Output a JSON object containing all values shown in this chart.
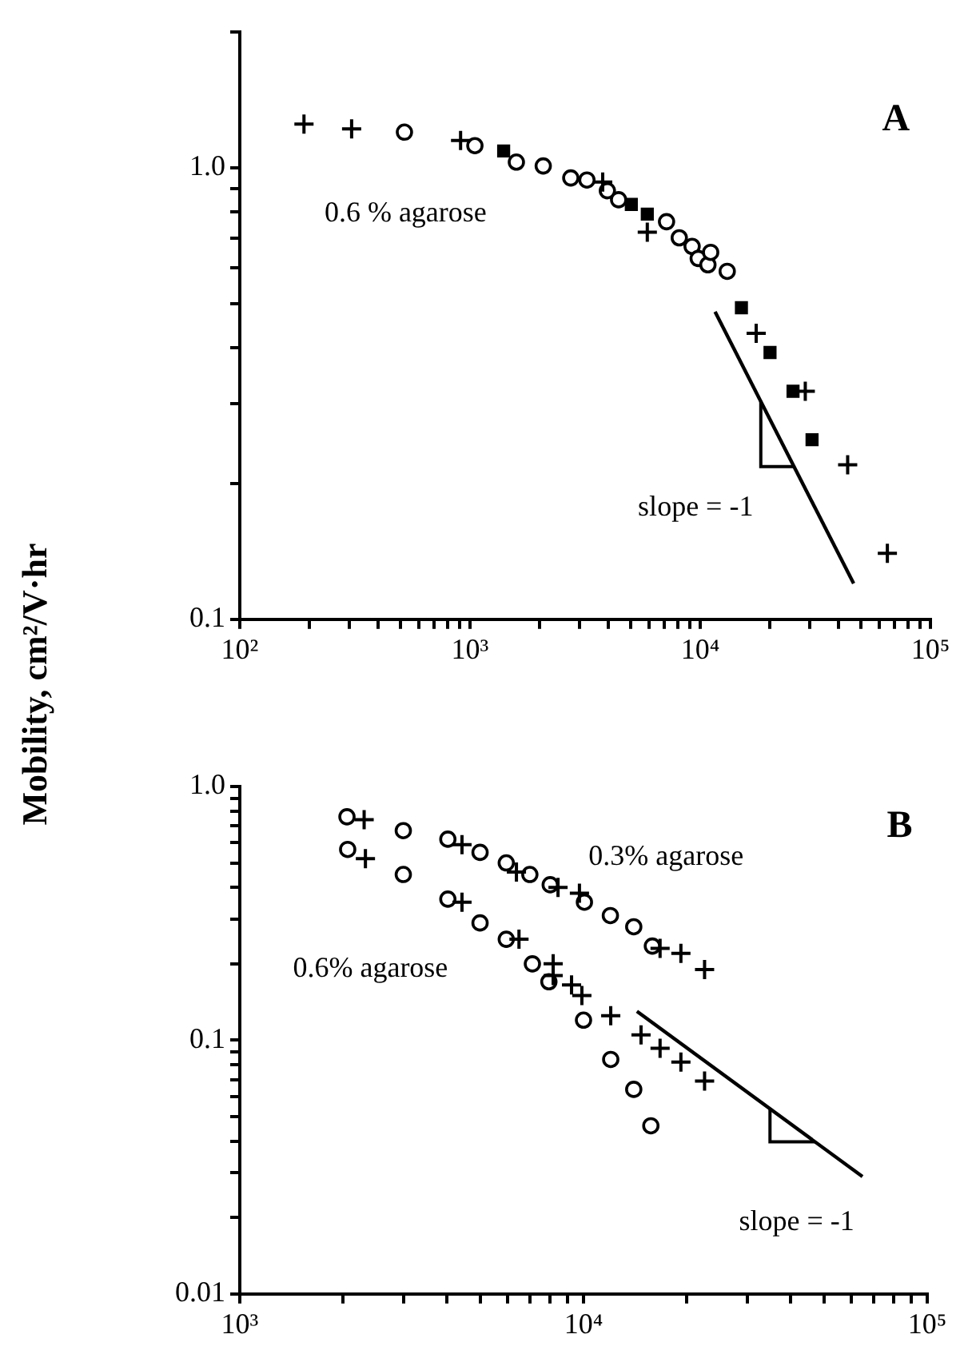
{
  "chart_data": [
    {
      "type": "scatter",
      "ylabel": "Mobility, cm²/V·hr",
      "annotations": [
        "A",
        "0.6 % agarose",
        "slope = -1"
      ],
      "log": "xy",
      "xlim": [
        100,
        100000
      ],
      "ylim": [
        0.1,
        2
      ],
      "xticks": [
        {
          "value": 100,
          "label": "10²"
        },
        {
          "value": 200,
          "label": null
        },
        {
          "value": 300,
          "label": null
        },
        {
          "value": 400,
          "label": null
        },
        {
          "value": 500,
          "label": null
        },
        {
          "value": 600,
          "label": null
        },
        {
          "value": 700,
          "label": null
        },
        {
          "value": 800,
          "label": null
        },
        {
          "value": 900,
          "label": null
        },
        {
          "value": 1000,
          "label": "10³"
        },
        {
          "value": 2000,
          "label": null
        },
        {
          "value": 3000,
          "label": null
        },
        {
          "value": 4000,
          "label": null
        },
        {
          "value": 5000,
          "label": null
        },
        {
          "value": 6000,
          "label": null
        },
        {
          "value": 7000,
          "label": null
        },
        {
          "value": 8000,
          "label": null
        },
        {
          "value": 9000,
          "label": null
        },
        {
          "value": 10000,
          "label": "10⁴"
        },
        {
          "value": 20000,
          "label": null
        },
        {
          "value": 30000,
          "label": null
        },
        {
          "value": 40000,
          "label": null
        },
        {
          "value": 50000,
          "label": null
        },
        {
          "value": 60000,
          "label": null
        },
        {
          "value": 70000,
          "label": null
        },
        {
          "value": 80000,
          "label": null
        },
        {
          "value": 90000,
          "label": null
        },
        {
          "value": 100000,
          "label": "10⁵"
        }
      ],
      "yticks": [
        {
          "value": 0.1,
          "label": "0.1"
        },
        {
          "value": 0.2,
          "label": null
        },
        {
          "value": 0.3,
          "label": null
        },
        {
          "value": 0.4,
          "label": null
        },
        {
          "value": 0.5,
          "label": null
        },
        {
          "value": 0.6,
          "label": null
        },
        {
          "value": 0.7,
          "label": null
        },
        {
          "value": 0.8,
          "label": null
        },
        {
          "value": 0.9,
          "label": null
        },
        {
          "value": 1,
          "label": "1.0"
        },
        {
          "value": 2,
          "label": null
        }
      ],
      "series": [
        {
          "type": "scatter",
          "marker": "cross",
          "color": "#000000",
          "x": [
            190,
            306,
            910,
            3770,
            5890,
            17500,
            28600,
            43700,
            65000
          ],
          "values": [
            1.25,
            1.22,
            1.15,
            0.93,
            0.72,
            0.43,
            0.32,
            0.22,
            0.14
          ]
        },
        {
          "type": "scatter",
          "marker": "circle",
          "color": "#000000",
          "x": [
            519,
            1050,
            1590,
            2080,
            2740,
            3220,
            3950,
            4420,
            7140,
            8110,
            9220,
            9800,
            10800,
            11100,
            13100
          ],
          "values": [
            1.2,
            1.12,
            1.03,
            1.01,
            0.95,
            0.94,
            0.89,
            0.85,
            0.76,
            0.7,
            0.67,
            0.63,
            0.61,
            0.65,
            0.59
          ]
        },
        {
          "type": "scatter",
          "marker": "square",
          "color": "#000000",
          "x": [
            1400,
            5020,
            5890,
            15100,
            20100,
            25300,
            30600
          ],
          "values": [
            1.09,
            0.83,
            0.79,
            0.49,
            0.39,
            0.32,
            0.25
          ]
        },
        {
          "type": "line",
          "marker": "none",
          "color": "#000000",
          "x": [
            11600,
            46400
          ],
          "values": [
            0.48,
            0.12
          ]
        }
      ]
    },
    {
      "type": "scatter",
      "annotations": [
        "B",
        "0.3% agarose",
        "0.6% agarose",
        "slope = -1"
      ],
      "log": "xy",
      "xlim": [
        1000,
        100000
      ],
      "ylim": [
        0.01,
        1
      ],
      "xticks": [
        {
          "value": 1000,
          "label": "10³"
        },
        {
          "value": 2000,
          "label": null
        },
        {
          "value": 3000,
          "label": null
        },
        {
          "value": 4000,
          "label": null
        },
        {
          "value": 5000,
          "label": null
        },
        {
          "value": 6000,
          "label": null
        },
        {
          "value": 7000,
          "label": null
        },
        {
          "value": 8000,
          "label": null
        },
        {
          "value": 9000,
          "label": null
        },
        {
          "value": 10000,
          "label": "10⁴"
        },
        {
          "value": 20000,
          "label": null
        },
        {
          "value": 30000,
          "label": null
        },
        {
          "value": 40000,
          "label": null
        },
        {
          "value": 50000,
          "label": null
        },
        {
          "value": 60000,
          "label": null
        },
        {
          "value": 70000,
          "label": null
        },
        {
          "value": 80000,
          "label": null
        },
        {
          "value": 90000,
          "label": null
        },
        {
          "value": 100000,
          "label": "10⁵"
        }
      ],
      "yticks": [
        {
          "value": 0.01,
          "label": "0.01"
        },
        {
          "value": 0.02,
          "label": null
        },
        {
          "value": 0.03,
          "label": null
        },
        {
          "value": 0.04,
          "label": null
        },
        {
          "value": 0.05,
          "label": null
        },
        {
          "value": 0.06,
          "label": null
        },
        {
          "value": 0.07,
          "label": null
        },
        {
          "value": 0.08,
          "label": null
        },
        {
          "value": 0.09,
          "label": null
        },
        {
          "value": 0.1,
          "label": "0.1"
        },
        {
          "value": 0.2,
          "label": null
        },
        {
          "value": 0.3,
          "label": null
        },
        {
          "value": 0.4,
          "label": null
        },
        {
          "value": 0.5,
          "label": null
        },
        {
          "value": 0.6,
          "label": null
        },
        {
          "value": 0.7,
          "label": null
        },
        {
          "value": 0.8,
          "label": null
        },
        {
          "value": 0.9,
          "label": null
        },
        {
          "value": 1,
          "label": "1.0"
        }
      ],
      "series": [
        {
          "type": "scatter",
          "marker": "cross",
          "color": "#000000",
          "x": [
            2300,
            4430,
            6380,
            8430,
            9730,
            16700,
            19200,
            22500,
            2320,
            4430,
            6490,
            8160,
            8160,
            9230,
            9890,
            12000,
            14700,
            16700,
            19200,
            22500
          ],
          "values": [
            0.74,
            0.59,
            0.46,
            0.4,
            0.38,
            0.23,
            0.22,
            0.19,
            0.52,
            0.35,
            0.25,
            0.2,
            0.18,
            0.165,
            0.15,
            0.125,
            0.105,
            0.093,
            0.082,
            0.069
          ]
        },
        {
          "type": "scatter",
          "marker": "circle",
          "color": "#000000",
          "x": [
            2050,
            2990,
            4030,
            5000,
            5960,
            6980,
            8000,
            14000,
            15860,
            2060,
            10060,
            11970,
            2990,
            4030,
            5000,
            5960,
            7100,
            7930,
            10000,
            12000,
            14000,
            15700
          ],
          "values": [
            0.76,
            0.67,
            0.62,
            0.55,
            0.5,
            0.45,
            0.41,
            0.28,
            0.235,
            0.565,
            0.35,
            0.31,
            0.45,
            0.36,
            0.29,
            0.25,
            0.2,
            0.17,
            0.12,
            0.084,
            0.064,
            0.046
          ]
        },
        {
          "type": "line",
          "marker": "none",
          "color": "#000000",
          "x": [
            14300,
            64800
          ],
          "values": [
            0.13,
            0.029
          ]
        }
      ]
    }
  ]
}
